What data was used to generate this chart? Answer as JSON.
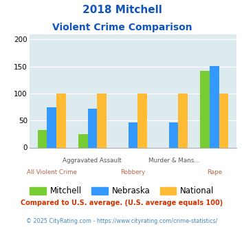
{
  "title_line1": "2018 Mitchell",
  "title_line2": "Violent Crime Comparison",
  "categories": [
    "All Violent Crime",
    "Aggravated Assault",
    "Robbery",
    "Murder & Mans...",
    "Rape"
  ],
  "top_labels": [
    "",
    "Aggravated Assault",
    "",
    "Murder & Mans...",
    ""
  ],
  "bot_labels": [
    "All Violent Crime",
    "",
    "Robbery",
    "",
    "Rape"
  ],
  "mitchell": [
    33,
    25,
    0,
    0,
    142
  ],
  "nebraska": [
    75,
    72,
    47,
    47,
    151
  ],
  "national": [
    100,
    100,
    100,
    100,
    100
  ],
  "mitchell_color": "#77cc33",
  "nebraska_color": "#3399ff",
  "national_color": "#ffbb33",
  "bg_color": "#ddeaee",
  "ylim": [
    0,
    210
  ],
  "yticks": [
    0,
    50,
    100,
    150,
    200
  ],
  "footnote1": "Compared to U.S. average. (U.S. average equals 100)",
  "footnote2": "© 2025 CityRating.com - https://www.cityrating.com/crime-statistics/",
  "title_color": "#1155bb",
  "top_label_color": "#555555",
  "bot_label_color": "#bb6644",
  "footnote1_color": "#cc3300",
  "footnote2_color": "#4488bb",
  "legend_label_color": "#333333"
}
